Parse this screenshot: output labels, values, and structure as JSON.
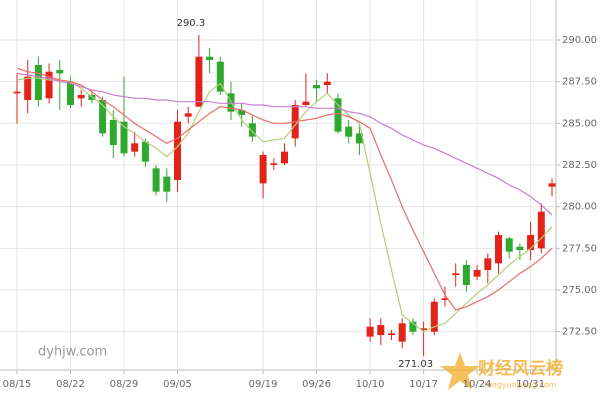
{
  "chart_data": {
    "type": "candlestick",
    "categories": [
      "08/15",
      null,
      null,
      null,
      null,
      "08/22",
      null,
      null,
      null,
      null,
      "08/29",
      null,
      null,
      null,
      null,
      "09/05",
      null,
      null,
      null,
      null,
      null,
      null,
      null,
      "09/19",
      null,
      null,
      null,
      null,
      "09/26",
      null,
      null,
      null,
      null,
      "10/10",
      null,
      null,
      null,
      null,
      "10/17",
      null,
      null,
      null,
      null,
      "10/24",
      null,
      null,
      null,
      null,
      "10/31",
      null,
      null
    ],
    "open": [
      286.8,
      286.4,
      288.5,
      286.5,
      288.2,
      287.5,
      286.5,
      286.7,
      286.4,
      285.2,
      285.1,
      283.3,
      283.9,
      282.3,
      281.8,
      281.6,
      285.4,
      286.0,
      289.0,
      288.7,
      286.8,
      285.8,
      285.0,
      281.4,
      282.5,
      282.6,
      284.1,
      286.1,
      287.3,
      287.3,
      286.5,
      284.8,
      284.4,
      272.2,
      272.3,
      272.3,
      271.9,
      273.1,
      272.6,
      272.5,
      274.4,
      275.9,
      276.5,
      275.8,
      276.2,
      276.6,
      278.1,
      277.6,
      277.4,
      277.5,
      281.2
    ],
    "high": [
      288.0,
      288.8,
      289.0,
      288.6,
      288.8,
      287.8,
      287.0,
      286.9,
      286.6,
      285.8,
      287.8,
      284.5,
      284.1,
      282.5,
      282.3,
      285.8,
      286.0,
      290.3,
      289.5,
      289.0,
      287.5,
      286.2,
      285.5,
      283.3,
      282.9,
      283.8,
      286.4,
      288.0,
      287.6,
      288.0,
      286.8,
      285.2,
      285.0,
      273.3,
      273.3,
      272.6,
      273.3,
      273.3,
      273.1,
      274.5,
      275.2,
      276.6,
      276.8,
      276.5,
      277.2,
      278.5,
      278.2,
      277.8,
      279.1,
      280.2,
      281.7
    ],
    "low": [
      285.0,
      285.6,
      286.0,
      286.2,
      285.8,
      285.9,
      286.0,
      286.2,
      284.2,
      282.9,
      283.0,
      283.0,
      282.4,
      280.7,
      280.3,
      280.9,
      285.0,
      286.0,
      288.0,
      286.7,
      285.2,
      284.8,
      283.9,
      280.5,
      282.2,
      282.5,
      283.6,
      286.0,
      286.3,
      286.8,
      284.4,
      283.8,
      283.1,
      271.9,
      271.7,
      272.0,
      271.5,
      272.3,
      271.03,
      272.3,
      274.0,
      275.2,
      274.9,
      275.6,
      275.4,
      276.0,
      276.9,
      276.8,
      276.8,
      277.2,
      280.6
    ],
    "close": [
      286.9,
      287.8,
      286.4,
      288.1,
      288.0,
      286.1,
      286.7,
      286.4,
      284.4,
      283.7,
      283.2,
      283.8,
      282.7,
      280.9,
      280.9,
      285.1,
      285.6,
      289.0,
      288.8,
      286.9,
      285.7,
      285.5,
      284.2,
      283.1,
      282.6,
      283.3,
      286.1,
      286.3,
      287.1,
      287.5,
      284.5,
      284.2,
      283.8,
      272.8,
      272.9,
      272.4,
      273.0,
      272.5,
      272.7,
      274.3,
      274.5,
      276.0,
      275.3,
      276.2,
      276.9,
      278.3,
      277.3,
      277.4,
      278.3,
      279.7,
      281.4
    ],
    "up_color": "#e2231a",
    "down_color": "#2fa82f",
    "lines": [
      {
        "color": "#b3cf7a",
        "values": [
          287.6,
          287.7,
          287.7,
          287.6,
          287.6,
          287.5,
          287.1,
          286.6,
          286.1,
          285.4,
          284.8,
          284.4,
          283.9,
          283.5,
          283.0,
          283.6,
          284.4,
          285.7,
          286.9,
          287.4,
          286.3,
          285.2,
          284.5,
          283.9,
          284.0,
          284.1,
          284.9,
          285.7,
          286.3,
          286.8,
          286.1,
          285.5,
          285.0,
          282.0,
          279.0,
          276.2,
          273.5,
          273.0,
          272.5,
          272.8,
          273.0,
          273.6,
          274.2,
          274.8,
          275.3,
          275.9,
          276.5,
          277.0,
          277.5,
          278.1,
          278.8
        ]
      },
      {
        "color": "#ec6c6c",
        "values": [
          288.3,
          288.1,
          288.0,
          287.8,
          287.6,
          287.5,
          287.3,
          286.9,
          286.4,
          286.0,
          285.5,
          285.0,
          284.6,
          284.2,
          283.8,
          284.1,
          284.6,
          285.1,
          285.6,
          286.0,
          285.9,
          285.8,
          285.5,
          285.2,
          285.0,
          285.0,
          285.1,
          285.2,
          285.3,
          285.5,
          285.6,
          285.4,
          285.1,
          284.7,
          283.1,
          281.6,
          280.0,
          278.6,
          277.3,
          276.0,
          274.7,
          273.8,
          274.0,
          274.3,
          274.6,
          275.0,
          275.5,
          276.0,
          276.4,
          276.9,
          277.5
        ]
      },
      {
        "color": "#c77fd0",
        "values": [
          288.0,
          287.9,
          287.8,
          287.7,
          287.5,
          287.4,
          287.2,
          287.0,
          286.9,
          286.7,
          286.6,
          286.5,
          286.5,
          286.4,
          286.4,
          286.3,
          286.3,
          286.3,
          286.3,
          286.2,
          286.2,
          286.2,
          286.1,
          286.1,
          286.0,
          286.0,
          286.0,
          286.0,
          285.9,
          285.9,
          285.9,
          285.7,
          285.6,
          285.4,
          285.0,
          284.7,
          284.3,
          284.0,
          283.7,
          283.5,
          283.2,
          282.9,
          282.6,
          282.3,
          282.0,
          281.7,
          281.3,
          281.0,
          280.6,
          280.1,
          279.5
        ]
      }
    ],
    "ylim": [
      270.2,
      292.1
    ],
    "yticks": [
      {
        "value": 272.5,
        "label": "272.50"
      },
      {
        "value": 275,
        "label": "275.00"
      },
      {
        "value": 277.5,
        "label": "277.50"
      },
      {
        "value": 280,
        "label": "280.00"
      },
      {
        "value": 282.5,
        "label": "282.50"
      },
      {
        "value": 285,
        "label": "285.00"
      },
      {
        "value": 287.5,
        "label": "287.50"
      },
      {
        "value": 290,
        "label": "290.00"
      }
    ],
    "grid": true,
    "annotations": {
      "high": "290.3",
      "low": "271.03"
    },
    "watermark": "dyhjw.com",
    "logo": {
      "name": "财经风云榜",
      "url": "fengyunbang.com"
    }
  }
}
